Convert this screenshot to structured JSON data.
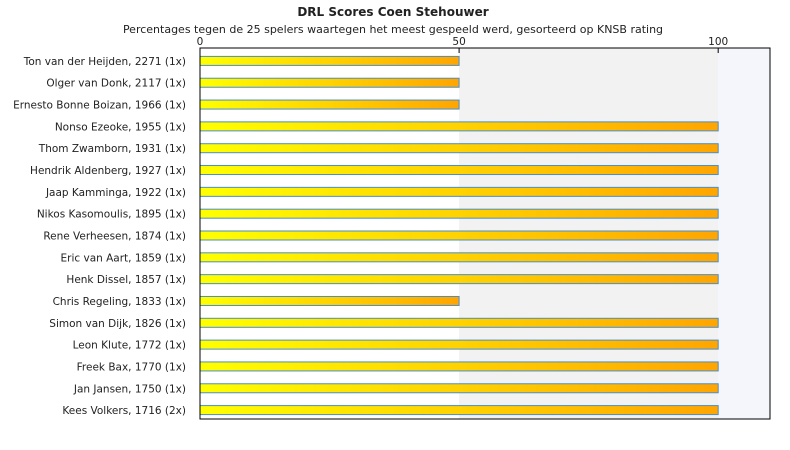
{
  "chart_data": {
    "type": "bar",
    "orientation": "horizontal",
    "title": "DRL Scores Coen Stehouwer",
    "subtitle": "Percentages tegen de 25 spelers waartegen het meest gespeeld werd, gesorteerd op KNSB rating",
    "xlabel": "",
    "ylabel": "",
    "xlim": [
      0,
      110
    ],
    "ticks": [
      0,
      50,
      100
    ],
    "tick_labels": [
      "0",
      "50",
      "100"
    ],
    "grid": false,
    "legend": "none",
    "colors": {
      "bar_gradient_start": "#ffff00",
      "bar_gradient_end": "#ffa500",
      "bar_border": "#4a8ec9",
      "band_light": "#f2f2f2",
      "band_lighter": "#f4f6fb",
      "plot_border": "#000000"
    },
    "categories": [
      "Ton van der Heijden, 2271 (1x)",
      "Olger van Donk, 2117 (1x)",
      "Ernesto Bonne Boizan, 1966 (1x)",
      "Nonso Ezeoke, 1955 (1x)",
      "Thom Zwamborn, 1931 (1x)",
      "Hendrik Aldenberg, 1927 (1x)",
      "Jaap Kamminga, 1922 (1x)",
      "Nikos Kasomoulis, 1895 (1x)",
      "Rene Verheesen, 1874 (1x)",
      "Eric van Aart, 1859 (1x)",
      "Henk Dissel, 1857 (1x)",
      "Chris Regeling, 1833 (1x)",
      "Simon van Dijk, 1826 (1x)",
      "Leon Klute, 1772 (1x)",
      "Freek Bax, 1770 (1x)",
      "Jan Jansen, 1750 (1x)",
      "Kees Volkers, 1716 (2x)"
    ],
    "values": [
      50,
      50,
      50,
      100,
      100,
      100,
      100,
      100,
      100,
      100,
      100,
      50,
      100,
      100,
      100,
      100,
      100
    ]
  }
}
